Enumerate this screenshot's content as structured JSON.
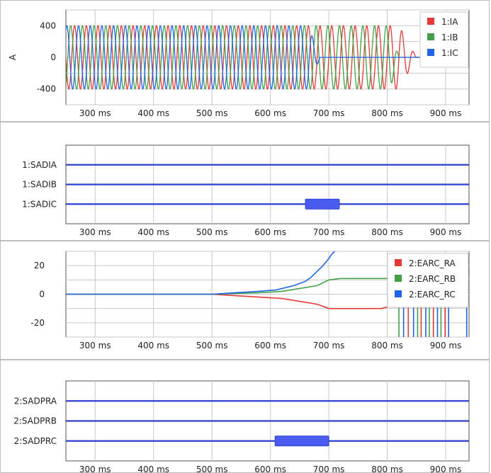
{
  "chart_data": [
    {
      "type": "line",
      "panel": "analog-currents",
      "ylabel": "A",
      "xlim_ms": [
        250,
        940
      ],
      "ylim": [
        -600,
        600
      ],
      "yticks": [
        400,
        0,
        -400
      ],
      "xticks": [
        300,
        400,
        500,
        600,
        700,
        800,
        900
      ],
      "xtick_unit": "ms",
      "legend_position": "top-right",
      "grid": true,
      "series": [
        {
          "name": "1:IA",
          "color": "#e53935",
          "amplitude": 400,
          "phase_deg": 0,
          "decay_start_ms": 820,
          "decay_end_ms": 850
        },
        {
          "name": "1:IB",
          "color": "#43a047",
          "amplitude": 400,
          "phase_deg": 120,
          "decay_start_ms": 805,
          "decay_end_ms": 820
        },
        {
          "name": "1:IC",
          "color": "#1e64e6",
          "amplitude": 400,
          "phase_deg": 240,
          "decay_start_ms": 665,
          "decay_end_ms": 685
        }
      ],
      "frequency_hz": 50
    },
    {
      "type": "line",
      "panel": "digital-sadi",
      "xlim_ms": [
        250,
        940
      ],
      "xticks": [
        300,
        400,
        500,
        600,
        700,
        800,
        900
      ],
      "xtick_unit": "ms",
      "channels": [
        {
          "name": "1:SADIA",
          "active": []
        },
        {
          "name": "1:SADIB",
          "active": []
        },
        {
          "name": "1:SADIC",
          "active": [
            [
              660,
              718
            ]
          ]
        }
      ],
      "line_color": "#2f3fd0",
      "active_color": "#4a5cf0"
    },
    {
      "type": "line",
      "panel": "analog-earc",
      "xlim_ms": [
        250,
        940
      ],
      "ylim": [
        -30,
        30
      ],
      "yticks": [
        20,
        0,
        -20
      ],
      "xticks": [
        300,
        400,
        500,
        600,
        700,
        800,
        900
      ],
      "xtick_unit": "ms",
      "legend_position": "top-right",
      "grid": true,
      "series": [
        {
          "name": "2:EARC_RA",
          "color": "#e53935",
          "x": [
            250,
            500,
            540,
            580,
            620,
            650,
            680,
            700,
            720,
            750,
            790,
            800,
            820,
            850,
            880,
            900,
            920,
            940
          ],
          "y": [
            0,
            0,
            -1,
            -2,
            -3,
            -5,
            -7,
            -10,
            -10,
            -10,
            -10,
            -9,
            -8,
            -7,
            -6,
            -6,
            -5,
            -5
          ]
        },
        {
          "name": "2:EARC_RB",
          "color": "#43a047",
          "x": [
            250,
            500,
            540,
            580,
            620,
            650,
            680,
            700,
            720,
            750,
            790,
            810,
            850,
            900,
            940
          ],
          "y": [
            0,
            0,
            0.5,
            1,
            2,
            4,
            6,
            10,
            11,
            11,
            11,
            11,
            11,
            11,
            11
          ]
        },
        {
          "name": "2:EARC_RC",
          "color": "#1e64e6",
          "x": [
            250,
            500,
            540,
            580,
            610,
            640,
            660,
            670,
            680,
            690,
            700,
            705,
            710
          ],
          "y": [
            0,
            0,
            1,
            2,
            3,
            6,
            9,
            12,
            16,
            20,
            25,
            28,
            30
          ]
        }
      ]
    },
    {
      "type": "line",
      "panel": "digital-sadpr",
      "xlim_ms": [
        250,
        940
      ],
      "xticks": [
        300,
        400,
        500,
        600,
        700,
        800,
        900
      ],
      "xtick_unit": "ms",
      "channels": [
        {
          "name": "2:SADPRA",
          "active": []
        },
        {
          "name": "2:SADPRB",
          "active": []
        },
        {
          "name": "2:SADPRC",
          "active": [
            [
              608,
              700
            ]
          ]
        }
      ],
      "line_color": "#2f3fd0",
      "active_color": "#4a5cf0"
    }
  ]
}
